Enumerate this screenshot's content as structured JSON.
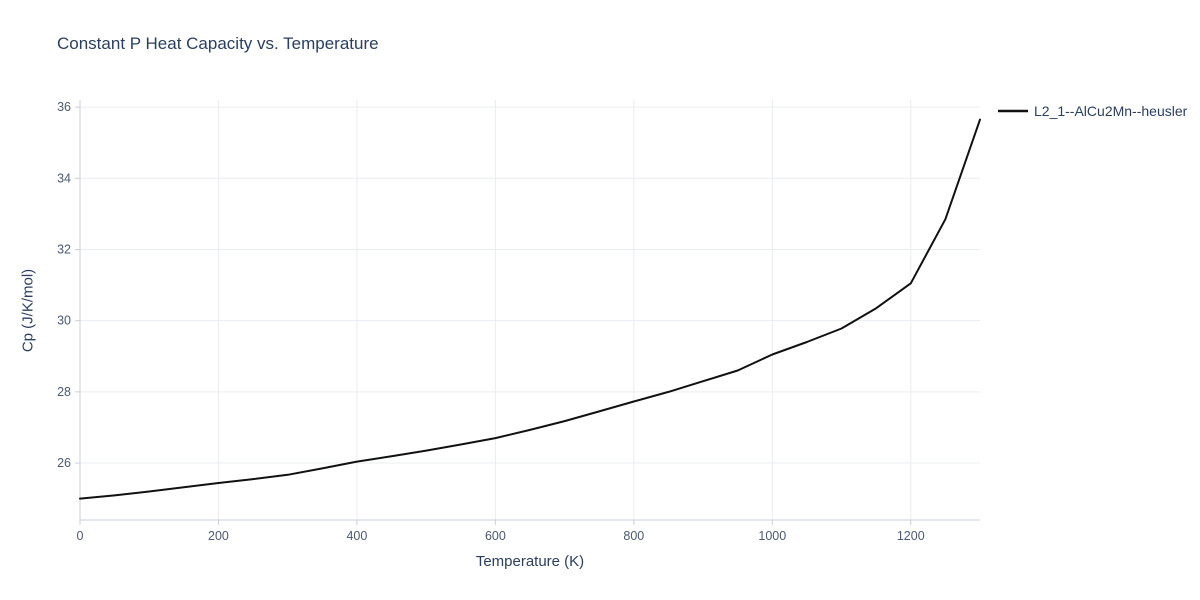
{
  "title": "Constant P Heat Capacity vs. Temperature",
  "legend": {
    "label": "L2_1--AlCu2Mn--heusler",
    "line_color": "#111111"
  },
  "chart_data": {
    "type": "line",
    "title": "Constant P Heat Capacity vs. Temperature",
    "xlabel": "Temperature (K)",
    "ylabel": "Cp (J/K/mol)",
    "xlim": [
      0,
      1300
    ],
    "ylim": [
      24.4,
      36.2
    ],
    "x_ticks": [
      0,
      200,
      400,
      600,
      800,
      1000,
      1200
    ],
    "y_ticks": [
      26,
      28,
      30,
      32,
      34,
      36
    ],
    "grid": true,
    "legend_position": "top-right-outside",
    "series": [
      {
        "name": "L2_1--AlCu2Mn--heusler",
        "color": "#111111",
        "x": [
          0,
          50,
          100,
          150,
          200,
          250,
          300,
          350,
          400,
          450,
          500,
          550,
          600,
          650,
          700,
          750,
          800,
          850,
          900,
          950,
          1000,
          1050,
          1100,
          1150,
          1200,
          1250,
          1300
        ],
        "y": [
          25.0,
          25.09,
          25.2,
          25.32,
          25.44,
          25.55,
          25.67,
          25.85,
          26.04,
          26.19,
          26.35,
          26.52,
          26.7,
          26.93,
          27.18,
          27.45,
          27.73,
          28.0,
          28.3,
          28.6,
          29.05,
          29.4,
          29.78,
          30.35,
          31.05,
          32.85,
          35.65
        ]
      }
    ],
    "style": {
      "grid_color": "#e9edf1",
      "axis_color": "#c9d0d8",
      "tick_label_color": "#4a5a75",
      "title_color": "#2a3f5f"
    }
  }
}
